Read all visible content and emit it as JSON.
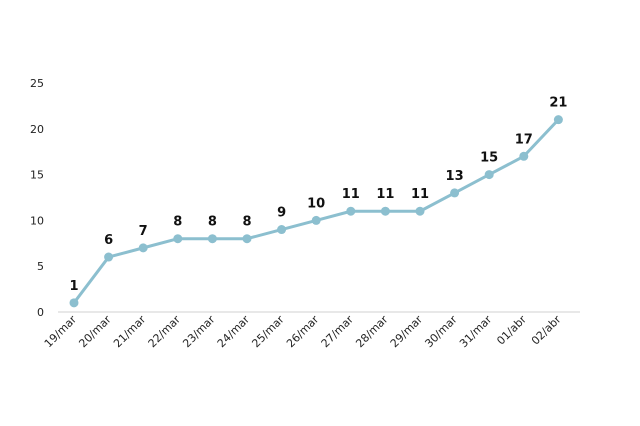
{
  "chart_data": {
    "type": "line",
    "categories": [
      "19/mar",
      "20/mar",
      "21/mar",
      "22/mar",
      "23/mar",
      "24/mar",
      "25/mar",
      "26/mar",
      "27/mar",
      "28/mar",
      "29/mar",
      "30/mar",
      "31/mar",
      "01/abr",
      "02/abr"
    ],
    "values": [
      1,
      6,
      7,
      8,
      8,
      8,
      9,
      10,
      11,
      11,
      11,
      13,
      15,
      17,
      21
    ],
    "y_ticks": [
      "0",
      "5",
      "10",
      "15",
      "20",
      "25"
    ],
    "ylim": [
      0,
      25
    ],
    "line_color": "#8cbfcf",
    "grid": false,
    "legend": "none",
    "data_labels": true
  }
}
